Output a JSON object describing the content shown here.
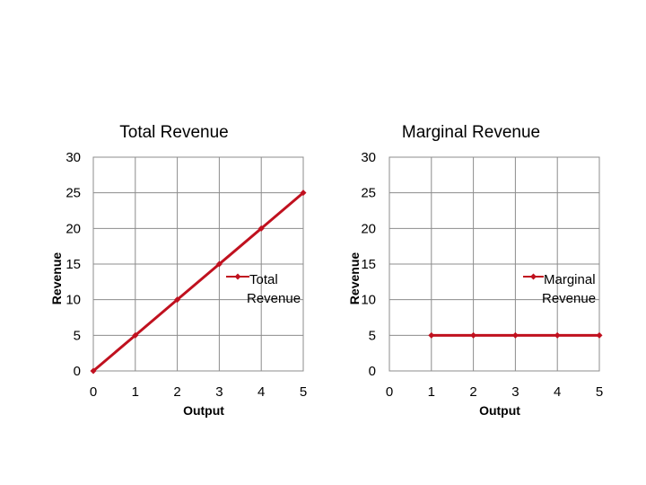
{
  "chart_data": [
    {
      "type": "line",
      "title": "Total Revenue",
      "xlabel": "Output",
      "ylabel": "Revenue",
      "x": [
        0,
        1,
        2,
        3,
        4,
        5
      ],
      "ylim": [
        0,
        30
      ],
      "yticks": [
        0,
        5,
        10,
        15,
        20,
        25,
        30
      ],
      "xticks": [
        0,
        1,
        2,
        3,
        4,
        5
      ],
      "grid": true,
      "legend_position": "right",
      "series": [
        {
          "name": "Total Revenue",
          "color": "#c0111f",
          "marker": "diamond",
          "x": [
            0,
            1,
            2,
            3,
            4,
            5
          ],
          "values": [
            0,
            5,
            10,
            15,
            20,
            25
          ]
        }
      ]
    },
    {
      "type": "line",
      "title": "Marginal Revenue",
      "xlabel": "Output",
      "ylabel": "Revenue",
      "x": [
        0,
        1,
        2,
        3,
        4,
        5
      ],
      "ylim": [
        0,
        30
      ],
      "yticks": [
        0,
        5,
        10,
        15,
        20,
        25,
        30
      ],
      "xticks": [
        0,
        1,
        2,
        3,
        4,
        5
      ],
      "grid": true,
      "legend_position": "right",
      "series": [
        {
          "name": "Marginal Revenue",
          "color": "#c0111f",
          "marker": "diamond",
          "x": [
            1,
            2,
            3,
            4,
            5
          ],
          "values": [
            5,
            5,
            5,
            5,
            5
          ]
        }
      ]
    }
  ]
}
